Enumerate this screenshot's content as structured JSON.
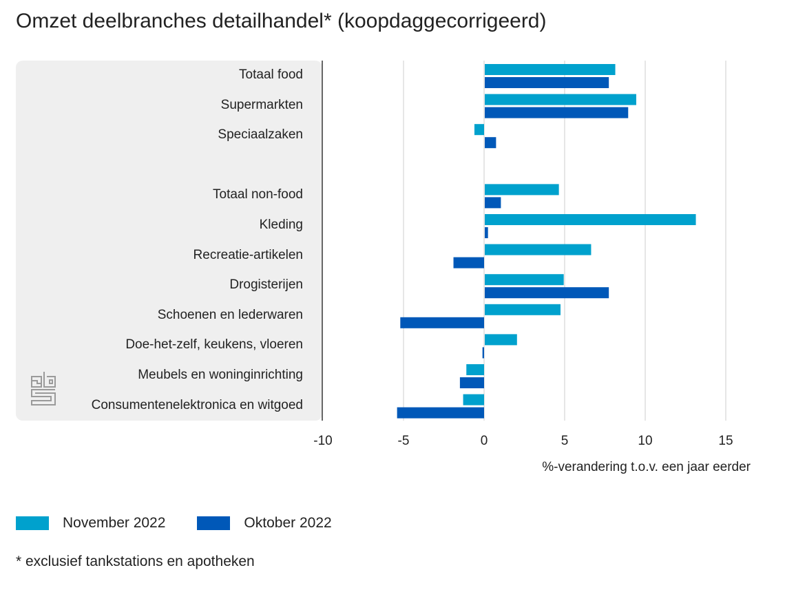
{
  "title": "Omzet deelbranches detailhandel* (koopdaggecorrigeerd)",
  "footnote": "* exclusief tankstations en apotheken",
  "logo": "cbs-logo",
  "colors": {
    "november": "#00a1cd",
    "oktober": "#0058b8",
    "grid": "#cccccc",
    "panel": "#efefef"
  },
  "chart_data": {
    "type": "bar",
    "orientation": "horizontal",
    "title": "Omzet deelbranches detailhandel* (koopdaggecorrigeerd)",
    "xlabel": "%-verandering t.o.v. een jaar eerder",
    "ylabel": "",
    "xlim": [
      -10,
      15
    ],
    "xticks": [
      "-10",
      "-5",
      "0",
      "5",
      "10",
      "15"
    ],
    "xtick_values": [
      -10,
      -5,
      0,
      5,
      10,
      15
    ],
    "grid": true,
    "legend_position": "bottom-left",
    "categories": [
      "Totaal food",
      "Supermarkten",
      "Speciaalzaken",
      "",
      "Totaal non-food",
      "Kleding",
      "Recreatie-artikelen",
      "Drogisterijen",
      "Schoenen en lederwaren",
      "Doe-het-zelf, keukens, vloeren",
      "Meubels en woninginrichting",
      "Consumentenelektronica en witgoed"
    ],
    "series": [
      {
        "name": "November 2022",
        "color": "#00a1cd",
        "values": [
          8.1,
          9.4,
          -0.6,
          null,
          4.6,
          13.1,
          6.6,
          4.9,
          4.7,
          2.0,
          -1.1,
          -1.3
        ]
      },
      {
        "name": "Oktober 2022",
        "color": "#0058b8",
        "values": [
          7.7,
          8.9,
          0.7,
          null,
          1.0,
          0.2,
          -1.9,
          7.7,
          -5.2,
          -0.1,
          -1.5,
          -5.4
        ]
      }
    ],
    "footnote": "* exclusief tankstations en apotheken"
  }
}
